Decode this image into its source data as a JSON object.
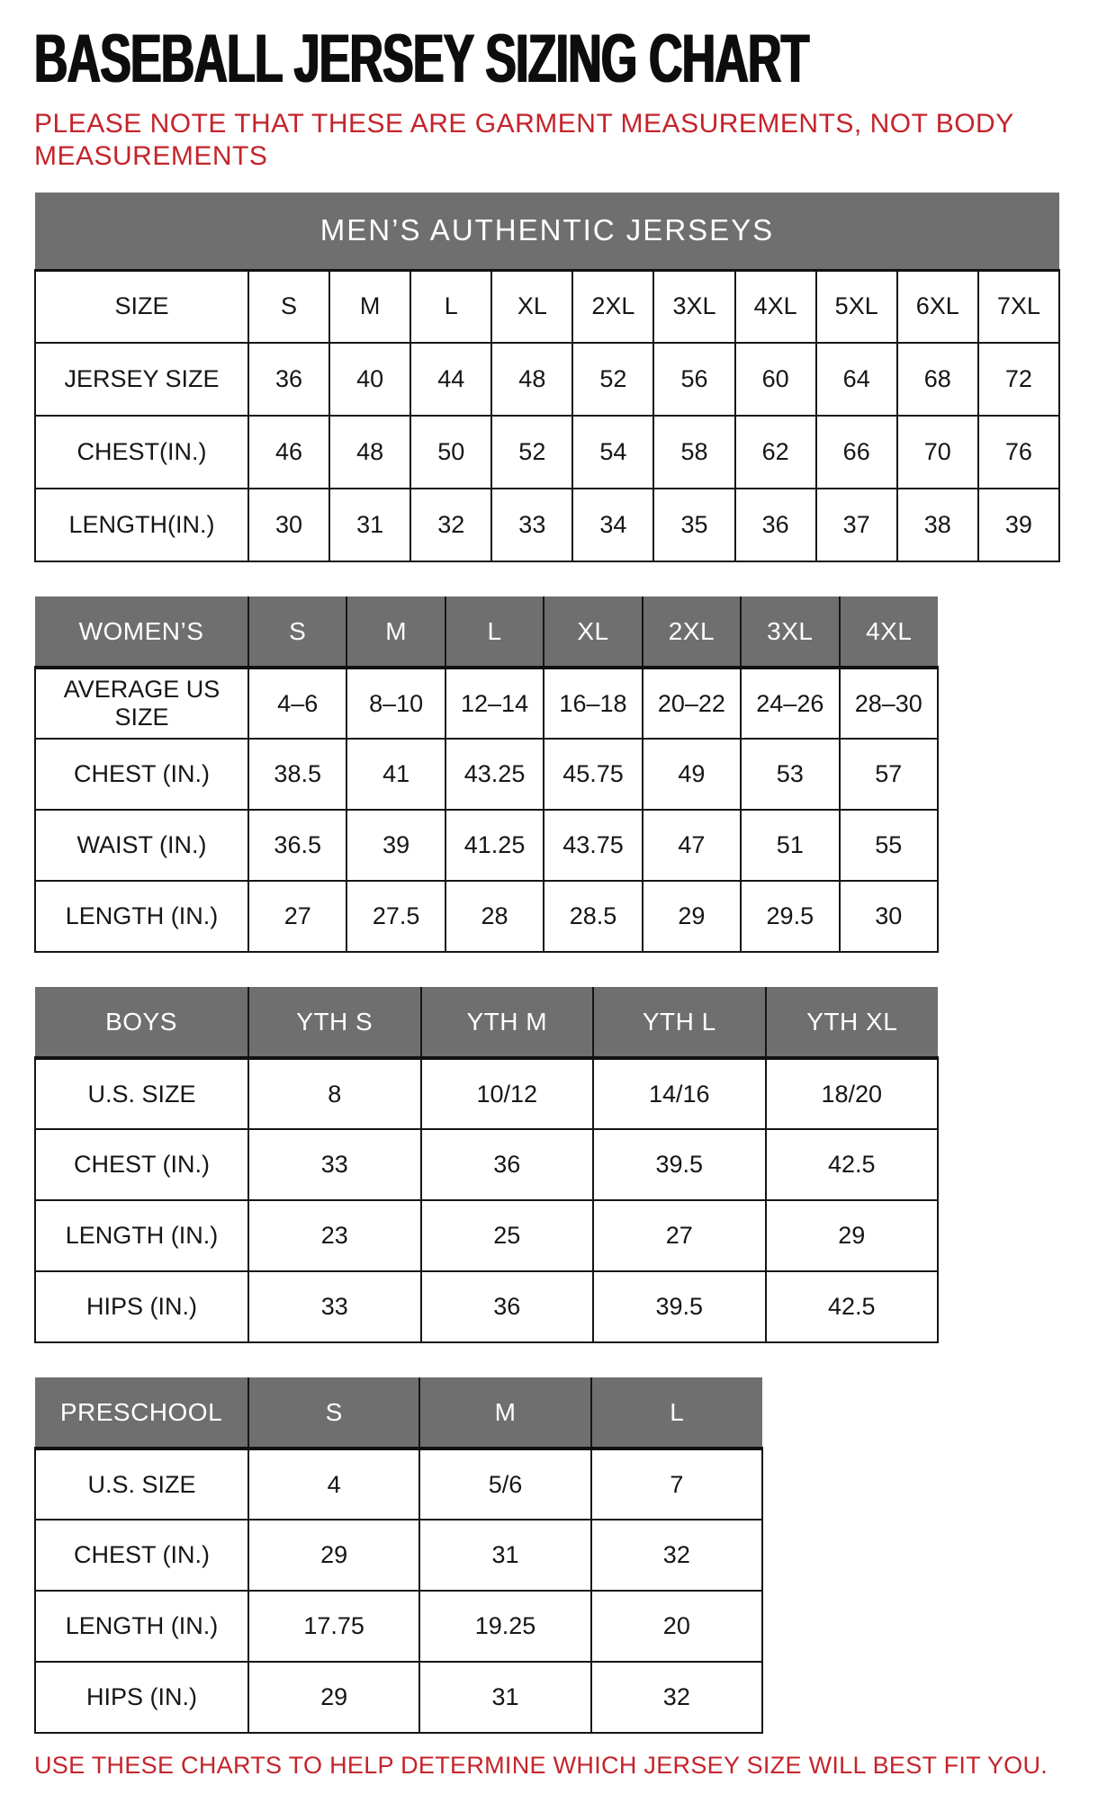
{
  "page": {
    "title": "BASEBALL JERSEY SIZING CHART",
    "note_lines": [
      "PLEASE NOTE THAT THESE ARE GARMENT MEASUREMENTS, NOT BODY",
      "MEASUREMENTS"
    ],
    "footer": "USE THESE CHARTS TO HELP DETERMINE WHICH JERSEY SIZE WILL BEST FIT YOU."
  },
  "colors": {
    "header_gray": "#6f6f6f",
    "accent_red": "#c4242b",
    "text_black": "#161616",
    "border_black": "#151515"
  },
  "tables": [
    {
      "id": "mens",
      "banner": "MEN’S AUTHENTIC JERSEYS",
      "rows": [
        {
          "label": "SIZE",
          "cells": [
            "S",
            "M",
            "L",
            "XL",
            "2XL",
            "3XL",
            "4XL",
            "5XL",
            "6XL",
            "7XL"
          ]
        },
        {
          "label": "JERSEY SIZE",
          "cells": [
            "36",
            "40",
            "44",
            "48",
            "52",
            "56",
            "60",
            "64",
            "68",
            "72"
          ]
        },
        {
          "label": "CHEST(IN.)",
          "cells": [
            "46",
            "48",
            "50",
            "52",
            "54",
            "58",
            "62",
            "66",
            "70",
            "76"
          ]
        },
        {
          "label": "LENGTH(IN.)",
          "cells": [
            "30",
            "31",
            "32",
            "33",
            "34",
            "35",
            "36",
            "37",
            "38",
            "39"
          ]
        }
      ]
    },
    {
      "id": "womens",
      "header": {
        "label": "WOMEN’S",
        "cells": [
          "S",
          "M",
          "L",
          "XL",
          "2XL",
          "3XL",
          "4XL"
        ]
      },
      "rows": [
        {
          "label": "AVERAGE US SIZE",
          "cells": [
            "4–6",
            "8–10",
            "12–14",
            "16–18",
            "20–22",
            "24–26",
            "28–30"
          ]
        },
        {
          "label": "CHEST (IN.)",
          "cells": [
            "38.5",
            "41",
            "43.25",
            "45.75",
            "49",
            "53",
            "57"
          ]
        },
        {
          "label": "WAIST (IN.)",
          "cells": [
            "36.5",
            "39",
            "41.25",
            "43.75",
            "47",
            "51",
            "55"
          ]
        },
        {
          "label": "LENGTH (IN.)",
          "cells": [
            "27",
            "27.5",
            "28",
            "28.5",
            "29",
            "29.5",
            "30"
          ]
        }
      ]
    },
    {
      "id": "boys",
      "header": {
        "label": "BOYS",
        "cells": [
          "YTH S",
          "YTH M",
          "YTH L",
          "YTH XL"
        ]
      },
      "rows": [
        {
          "label": "U.S. SIZE",
          "cells": [
            "8",
            "10/12",
            "14/16",
            "18/20"
          ]
        },
        {
          "label": "CHEST (IN.)",
          "cells": [
            "33",
            "36",
            "39.5",
            "42.5"
          ]
        },
        {
          "label": "LENGTH (IN.)",
          "cells": [
            "23",
            "25",
            "27",
            "29"
          ]
        },
        {
          "label": "HIPS (IN.)",
          "cells": [
            "33",
            "36",
            "39.5",
            "42.5"
          ]
        }
      ]
    },
    {
      "id": "preschool",
      "header": {
        "label": "PRESCHOOL",
        "cells": [
          "S",
          "M",
          "L"
        ]
      },
      "rows": [
        {
          "label": "U.S. SIZE",
          "cells": [
            "4",
            "5/6",
            "7"
          ]
        },
        {
          "label": "CHEST (IN.)",
          "cells": [
            "29",
            "31",
            "32"
          ]
        },
        {
          "label": "LENGTH (IN.)",
          "cells": [
            "17.75",
            "19.25",
            "20"
          ]
        },
        {
          "label": "HIPS (IN.)",
          "cells": [
            "29",
            "31",
            "32"
          ]
        }
      ]
    }
  ]
}
